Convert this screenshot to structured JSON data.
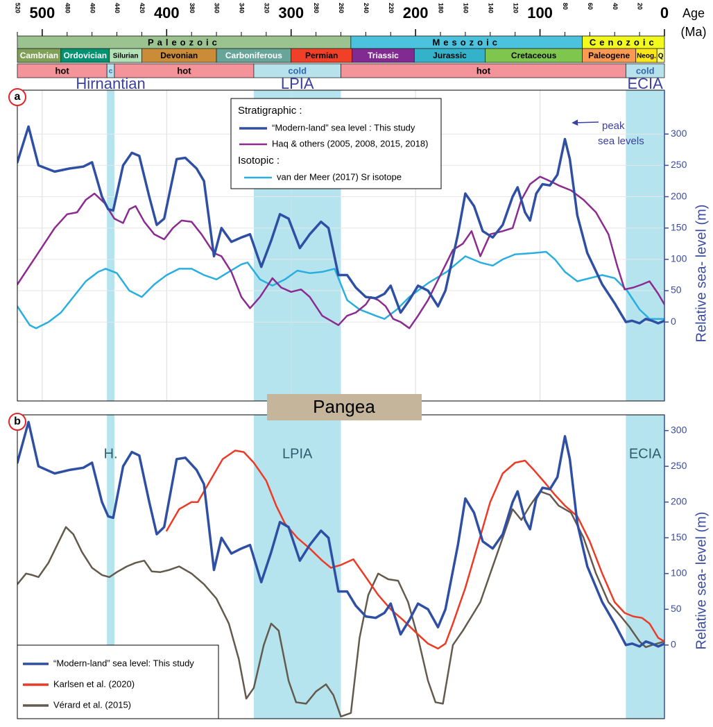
{
  "timescale": {
    "xlim": [
      520,
      0
    ],
    "xticks": [
      500,
      400,
      300,
      200,
      100,
      0
    ],
    "minor_ticks": [
      520,
      480,
      460,
      440,
      420,
      380,
      360,
      340,
      320,
      280,
      260,
      240,
      220,
      180,
      160,
      140,
      120,
      80,
      60,
      40,
      20
    ],
    "axis_label": [
      "Age",
      "(Ma)"
    ],
    "eras": [
      {
        "name": "Paleozoic",
        "start": 520,
        "end": 252,
        "color": "#9ac38f"
      },
      {
        "name": "Mesozoic",
        "start": 252,
        "end": 66,
        "color": "#4cc3de"
      },
      {
        "name": "Cenozoic",
        "start": 66,
        "end": 0,
        "color": "#f2f91d"
      }
    ],
    "periods": [
      {
        "name": "Cambrian",
        "start": 520,
        "end": 485,
        "color": "#7fa056",
        "text_color": "#ffffff"
      },
      {
        "name": "Ordovician",
        "start": 485,
        "end": 446,
        "color": "#009270",
        "text_color": "#ffffff"
      },
      {
        "name": "Silurian",
        "start": 446,
        "end": 420,
        "color": "#b3e1b6",
        "text_color": "#000000"
      },
      {
        "name": "Devonian",
        "start": 420,
        "end": 360,
        "color": "#cb8c37",
        "text_color": "#000000"
      },
      {
        "name": "Carboniferous",
        "start": 360,
        "end": 300,
        "color": "#67a599",
        "text_color": "#ffffff"
      },
      {
        "name": "Permian",
        "start": 300,
        "end": 251,
        "color": "#f04028",
        "text_color": "#000000"
      },
      {
        "name": "Triassic",
        "start": 251,
        "end": 201,
        "color": "#812b92",
        "text_color": "#ffffff"
      },
      {
        "name": "Jurassic",
        "start": 201,
        "end": 144,
        "color": "#34b2c9",
        "text_color": "#000000"
      },
      {
        "name": "Cretaceous",
        "start": 144,
        "end": 66,
        "color": "#7fc64e",
        "text_color": "#000000"
      },
      {
        "name": "Paleogene",
        "start": 66,
        "end": 23,
        "color": "#fd9a52",
        "text_color": "#000000"
      },
      {
        "name": "Neog.",
        "start": 23,
        "end": 6,
        "color": "#ffe619",
        "text_color": "#000000"
      },
      {
        "name": "Q",
        "start": 6,
        "end": 0,
        "color": "#f9f97f",
        "text_color": "#000000"
      }
    ],
    "climate": [
      {
        "name": "hot",
        "start": 520,
        "end": 448,
        "color": "#f4949a",
        "text_color": "#000000"
      },
      {
        "name": "c",
        "start": 448,
        "end": 442,
        "color": "#b7e2ec",
        "text_color": "#3566b0"
      },
      {
        "name": "hot",
        "start": 442,
        "end": 330,
        "color": "#f4949a",
        "text_color": "#000000"
      },
      {
        "name": "cold",
        "start": 330,
        "end": 260,
        "color": "#b7e2ec",
        "text_color": "#3566b0"
      },
      {
        "name": "hot",
        "start": 260,
        "end": 31,
        "color": "#f4949a",
        "text_color": "#000000"
      },
      {
        "name": "cold",
        "start": 31,
        "end": 0,
        "color": "#b7e2ec",
        "text_color": "#3566b0"
      }
    ]
  },
  "banner": "Pangea",
  "chart_data": [
    {
      "type": "line",
      "panel_label": "a",
      "y_label": "Relative sea- level (m)",
      "xlim": [
        520,
        0
      ],
      "ylim": [
        -126,
        370
      ],
      "yticks": [
        0,
        50,
        100,
        150,
        200,
        250,
        300
      ],
      "grid": true,
      "legend_headings": [
        "Stratigraphic :",
        "Isotopic :"
      ],
      "annotation": [
        "peak",
        "sea levels"
      ],
      "bands": [
        {
          "label": "Hirnantian",
          "start": 448,
          "end": 442
        },
        {
          "label": "LPIA",
          "start": 330,
          "end": 260
        },
        {
          "label": "ECIA",
          "start": 31,
          "end": 0
        }
      ],
      "series": [
        {
          "name": "“Modern-land” sea level : This study",
          "color": "#2e4fa3",
          "x": [
            520,
            511,
            503,
            490,
            478,
            467,
            460,
            452,
            447,
            443,
            435,
            428,
            422,
            414,
            408,
            402,
            392,
            385,
            376,
            370,
            362,
            356,
            348,
            340,
            333,
            324,
            316,
            309,
            302,
            293,
            285,
            276,
            270,
            262,
            255,
            248,
            240,
            232,
            225,
            220,
            212,
            205,
            198,
            190,
            182,
            176,
            166,
            160,
            153,
            146,
            138,
            130,
            122,
            118,
            112,
            108,
            103,
            98,
            92,
            86,
            80,
            76,
            70,
            62,
            50,
            40,
            31,
            26,
            20,
            15,
            10,
            5,
            0
          ],
          "values": [
            255,
            312,
            250,
            240,
            245,
            248,
            255,
            200,
            180,
            178,
            250,
            270,
            265,
            200,
            155,
            165,
            260,
            262,
            245,
            225,
            105,
            150,
            128,
            135,
            140,
            88,
            130,
            172,
            165,
            118,
            140,
            160,
            150,
            75,
            75,
            55,
            40,
            38,
            45,
            58,
            15,
            35,
            58,
            50,
            25,
            50,
            140,
            205,
            185,
            145,
            135,
            155,
            200,
            215,
            175,
            162,
            205,
            220,
            218,
            235,
            292,
            260,
            170,
            110,
            60,
            30,
            0,
            2,
            -2,
            5,
            2,
            -2,
            2
          ]
        },
        {
          "name": "Haq & others (2005, 2008, 2015, 2018)",
          "color": "#8b2a8f",
          "x": [
            520,
            505,
            490,
            480,
            472,
            465,
            458,
            450,
            442,
            435,
            430,
            425,
            418,
            410,
            402,
            395,
            388,
            380,
            372,
            362,
            356,
            348,
            340,
            333,
            325,
            315,
            308,
            300,
            292,
            285,
            275,
            262,
            255,
            248,
            240,
            236,
            230,
            224,
            218,
            212,
            205,
            198,
            190,
            180,
            170,
            162,
            155,
            148,
            140,
            130,
            122,
            115,
            108,
            100,
            92,
            85,
            75,
            65,
            55,
            45,
            38,
            32,
            25,
            18,
            12,
            5,
            0
          ],
          "values": [
            60,
            105,
            150,
            172,
            175,
            195,
            205,
            190,
            165,
            158,
            180,
            185,
            160,
            140,
            132,
            150,
            162,
            160,
            140,
            110,
            105,
            80,
            40,
            22,
            40,
            70,
            55,
            48,
            52,
            40,
            10,
            -5,
            10,
            15,
            28,
            40,
            35,
            25,
            5,
            0,
            -10,
            10,
            35,
            75,
            115,
            125,
            145,
            105,
            140,
            145,
            150,
            195,
            220,
            232,
            225,
            218,
            210,
            195,
            175,
            140,
            90,
            52,
            55,
            60,
            65,
            45,
            28
          ]
        },
        {
          "name": "van der Meer (2017) Sr isotope",
          "color": "#29aee0",
          "x": [
            520,
            510,
            505,
            495,
            485,
            475,
            465,
            455,
            449,
            440,
            430,
            420,
            410,
            400,
            390,
            380,
            370,
            360,
            350,
            340,
            335,
            325,
            315,
            305,
            295,
            285,
            275,
            265,
            255,
            245,
            232,
            225,
            215,
            205,
            190,
            175,
            160,
            148,
            138,
            130,
            120,
            105,
            95,
            88,
            80,
            70,
            60,
            50,
            40,
            30,
            20,
            12,
            5,
            0
          ],
          "values": [
            25,
            -5,
            -10,
            0,
            15,
            40,
            65,
            80,
            85,
            78,
            50,
            40,
            60,
            75,
            85,
            85,
            75,
            68,
            80,
            92,
            95,
            68,
            58,
            68,
            82,
            78,
            80,
            85,
            35,
            20,
            10,
            5,
            20,
            40,
            62,
            80,
            105,
            95,
            90,
            100,
            108,
            110,
            112,
            100,
            80,
            65,
            70,
            75,
            70,
            50,
            20,
            5,
            5,
            5
          ]
        }
      ]
    },
    {
      "type": "line",
      "panel_label": "b",
      "y_label": "Relative sea- level (m)",
      "xlim": [
        520,
        0
      ],
      "ylim": [
        -103,
        322
      ],
      "yticks": [
        0,
        50,
        100,
        150,
        200,
        250,
        300
      ],
      "grid": false,
      "bands": [
        {
          "label": "H.",
          "start": 448,
          "end": 442
        },
        {
          "label": "LPIA",
          "start": 330,
          "end": 260
        },
        {
          "label": "ECIA",
          "start": 31,
          "end": 0
        }
      ],
      "series": [
        {
          "name": "“Modern-land” sea level: This study",
          "color": "#2e4fa3",
          "x": [
            520,
            511,
            503,
            490,
            478,
            467,
            460,
            452,
            447,
            443,
            435,
            428,
            422,
            414,
            408,
            402,
            392,
            385,
            376,
            370,
            362,
            356,
            348,
            340,
            333,
            324,
            316,
            309,
            302,
            293,
            285,
            276,
            270,
            262,
            255,
            248,
            240,
            232,
            225,
            220,
            212,
            205,
            198,
            190,
            182,
            176,
            166,
            160,
            153,
            146,
            138,
            130,
            122,
            118,
            112,
            108,
            103,
            98,
            92,
            86,
            80,
            76,
            70,
            62,
            50,
            40,
            31,
            26,
            20,
            15,
            10,
            5,
            0
          ],
          "values": [
            255,
            312,
            250,
            240,
            245,
            248,
            255,
            200,
            180,
            178,
            250,
            270,
            265,
            200,
            155,
            165,
            260,
            262,
            245,
            225,
            105,
            150,
            128,
            135,
            140,
            88,
            130,
            172,
            165,
            118,
            140,
            160,
            150,
            75,
            75,
            55,
            40,
            38,
            45,
            58,
            15,
            35,
            58,
            50,
            25,
            50,
            140,
            205,
            185,
            145,
            135,
            155,
            200,
            215,
            175,
            162,
            205,
            220,
            218,
            235,
            292,
            260,
            170,
            110,
            60,
            30,
            0,
            2,
            -2,
            5,
            2,
            -2,
            2
          ]
        },
        {
          "name": "Karlsen et al. (2020)",
          "color": "#ee3a24",
          "x": [
            400,
            390,
            380,
            375,
            365,
            355,
            345,
            338,
            330,
            320,
            312,
            305,
            295,
            285,
            275,
            268,
            260,
            250,
            240,
            230,
            220,
            210,
            200,
            190,
            182,
            176,
            170,
            160,
            150,
            140,
            130,
            120,
            112,
            105,
            95,
            88,
            80,
            70,
            60,
            50,
            40,
            32,
            25,
            18,
            12,
            5,
            0
          ],
          "values": [
            160,
            190,
            200,
            200,
            230,
            260,
            272,
            270,
            255,
            230,
            195,
            170,
            150,
            135,
            118,
            108,
            112,
            120,
            95,
            70,
            50,
            35,
            18,
            2,
            -5,
            2,
            30,
            80,
            140,
            200,
            240,
            255,
            258,
            245,
            225,
            210,
            195,
            180,
            145,
            100,
            60,
            45,
            40,
            38,
            30,
            10,
            5
          ]
        },
        {
          "name": "Vérard et al. (2015)",
          "color": "#635a4d",
          "x": [
            520,
            513,
            508,
            503,
            495,
            488,
            481,
            475,
            468,
            460,
            452,
            446,
            440,
            432,
            425,
            418,
            412,
            405,
            398,
            390,
            380,
            370,
            360,
            350,
            342,
            336,
            330,
            322,
            316,
            310,
            302,
            296,
            288,
            280,
            272,
            266,
            260,
            252,
            245,
            238,
            230,
            222,
            214,
            206,
            198,
            190,
            184,
            178,
            170,
            162,
            155,
            148,
            140,
            130,
            122,
            115,
            108,
            100,
            92,
            85,
            75,
            65,
            55,
            45,
            35,
            28,
            20,
            15,
            10,
            0
          ],
          "values": [
            85,
            100,
            98,
            95,
            115,
            140,
            165,
            155,
            130,
            108,
            98,
            95,
            102,
            110,
            115,
            118,
            103,
            102,
            105,
            110,
            100,
            85,
            65,
            30,
            -20,
            -75,
            -60,
            0,
            30,
            20,
            -50,
            -80,
            -82,
            -65,
            -55,
            -70,
            -100,
            -95,
            10,
            70,
            100,
            92,
            90,
            60,
            10,
            -50,
            -80,
            -82,
            0,
            20,
            40,
            60,
            100,
            150,
            190,
            175,
            195,
            215,
            210,
            195,
            185,
            150,
            100,
            60,
            40,
            25,
            5,
            -3,
            0,
            5
          ]
        }
      ]
    }
  ]
}
